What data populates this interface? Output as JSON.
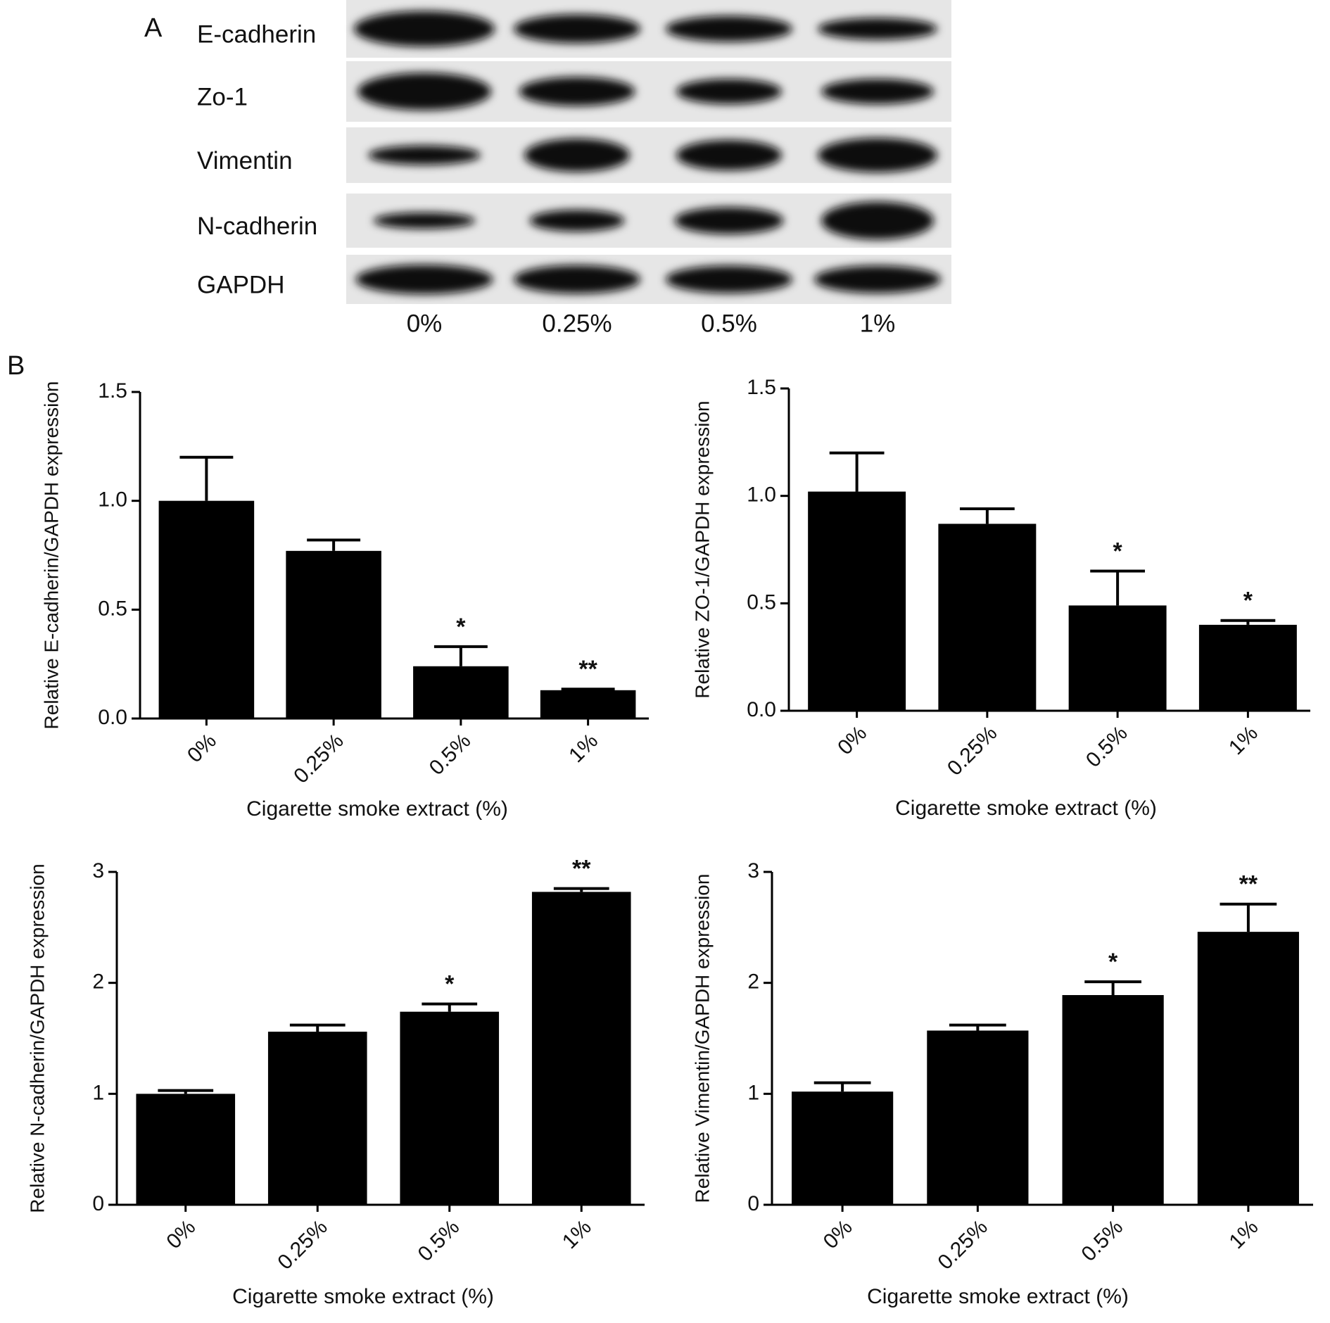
{
  "panel_a": {
    "label": "A",
    "proteins": [
      "E-cadherin",
      "Zo-1",
      "Vimentin",
      "N-cadherin",
      "GAPDH"
    ],
    "lanes": [
      "0%",
      "0.25%",
      "0.5%",
      "1%"
    ]
  },
  "panel_b_label": "B",
  "chart_data": [
    {
      "type": "bar",
      "ylabel": "Relative E-cadherin/GAPDH expression",
      "xlabel": "Cigarette smoke extract (%)",
      "categories": [
        "0%",
        "0.25%",
        "0.5%",
        "1%"
      ],
      "values": [
        1.0,
        0.77,
        0.24,
        0.13
      ],
      "errors": [
        0.2,
        0.05,
        0.09,
        0.005
      ],
      "annotations": [
        null,
        null,
        "*",
        "**"
      ],
      "color": "#000000",
      "ylim": [
        0,
        1.5
      ],
      "yticks": [
        {
          "value": 0,
          "label": "0.0"
        },
        0.5,
        {
          "value": 1,
          "label": "1.0"
        },
        1.5
      ]
    },
    {
      "type": "bar",
      "ylabel": "Relative ZO-1/GAPDH expression",
      "xlabel": "Cigarette smoke extract (%)",
      "categories": [
        "0%",
        "0.25%",
        "0.5%",
        "1%"
      ],
      "values": [
        1.02,
        0.87,
        0.49,
        0.4
      ],
      "errors": [
        0.18,
        0.07,
        0.16,
        0.02
      ],
      "annotations": [
        null,
        null,
        "*",
        "*"
      ],
      "color": "#000000",
      "ylim": [
        0,
        1.5
      ],
      "yticks": [
        {
          "value": 0,
          "label": "0.0"
        },
        0.5,
        {
          "value": 1,
          "label": "1.0"
        },
        1.5
      ]
    },
    {
      "type": "bar",
      "ylabel": "Relative N-cadherin/GAPDH expression",
      "xlabel": "Cigarette smoke extract (%)",
      "categories": [
        "0%",
        "0.25%",
        "0.5%",
        "1%"
      ],
      "values": [
        1.0,
        1.56,
        1.74,
        2.82
      ],
      "errors": [
        0.03,
        0.06,
        0.07,
        0.03
      ],
      "annotations": [
        null,
        null,
        "*",
        "**"
      ],
      "color": "#000000",
      "ylim": [
        0,
        3
      ],
      "yticks": [
        0,
        1,
        2,
        3
      ]
    },
    {
      "type": "bar",
      "ylabel": "Relative Vimentin/GAPDH expression",
      "xlabel": "Cigarette smoke extract (%)",
      "categories": [
        "0%",
        "0.25%",
        "0.5%",
        "1%"
      ],
      "values": [
        1.02,
        1.57,
        1.89,
        2.46
      ],
      "errors": [
        0.08,
        0.05,
        0.12,
        0.25
      ],
      "annotations": [
        null,
        null,
        "*",
        "**"
      ],
      "color": "#000000",
      "ylim": [
        0,
        3
      ],
      "yticks": [
        0,
        1,
        2,
        3
      ]
    }
  ]
}
